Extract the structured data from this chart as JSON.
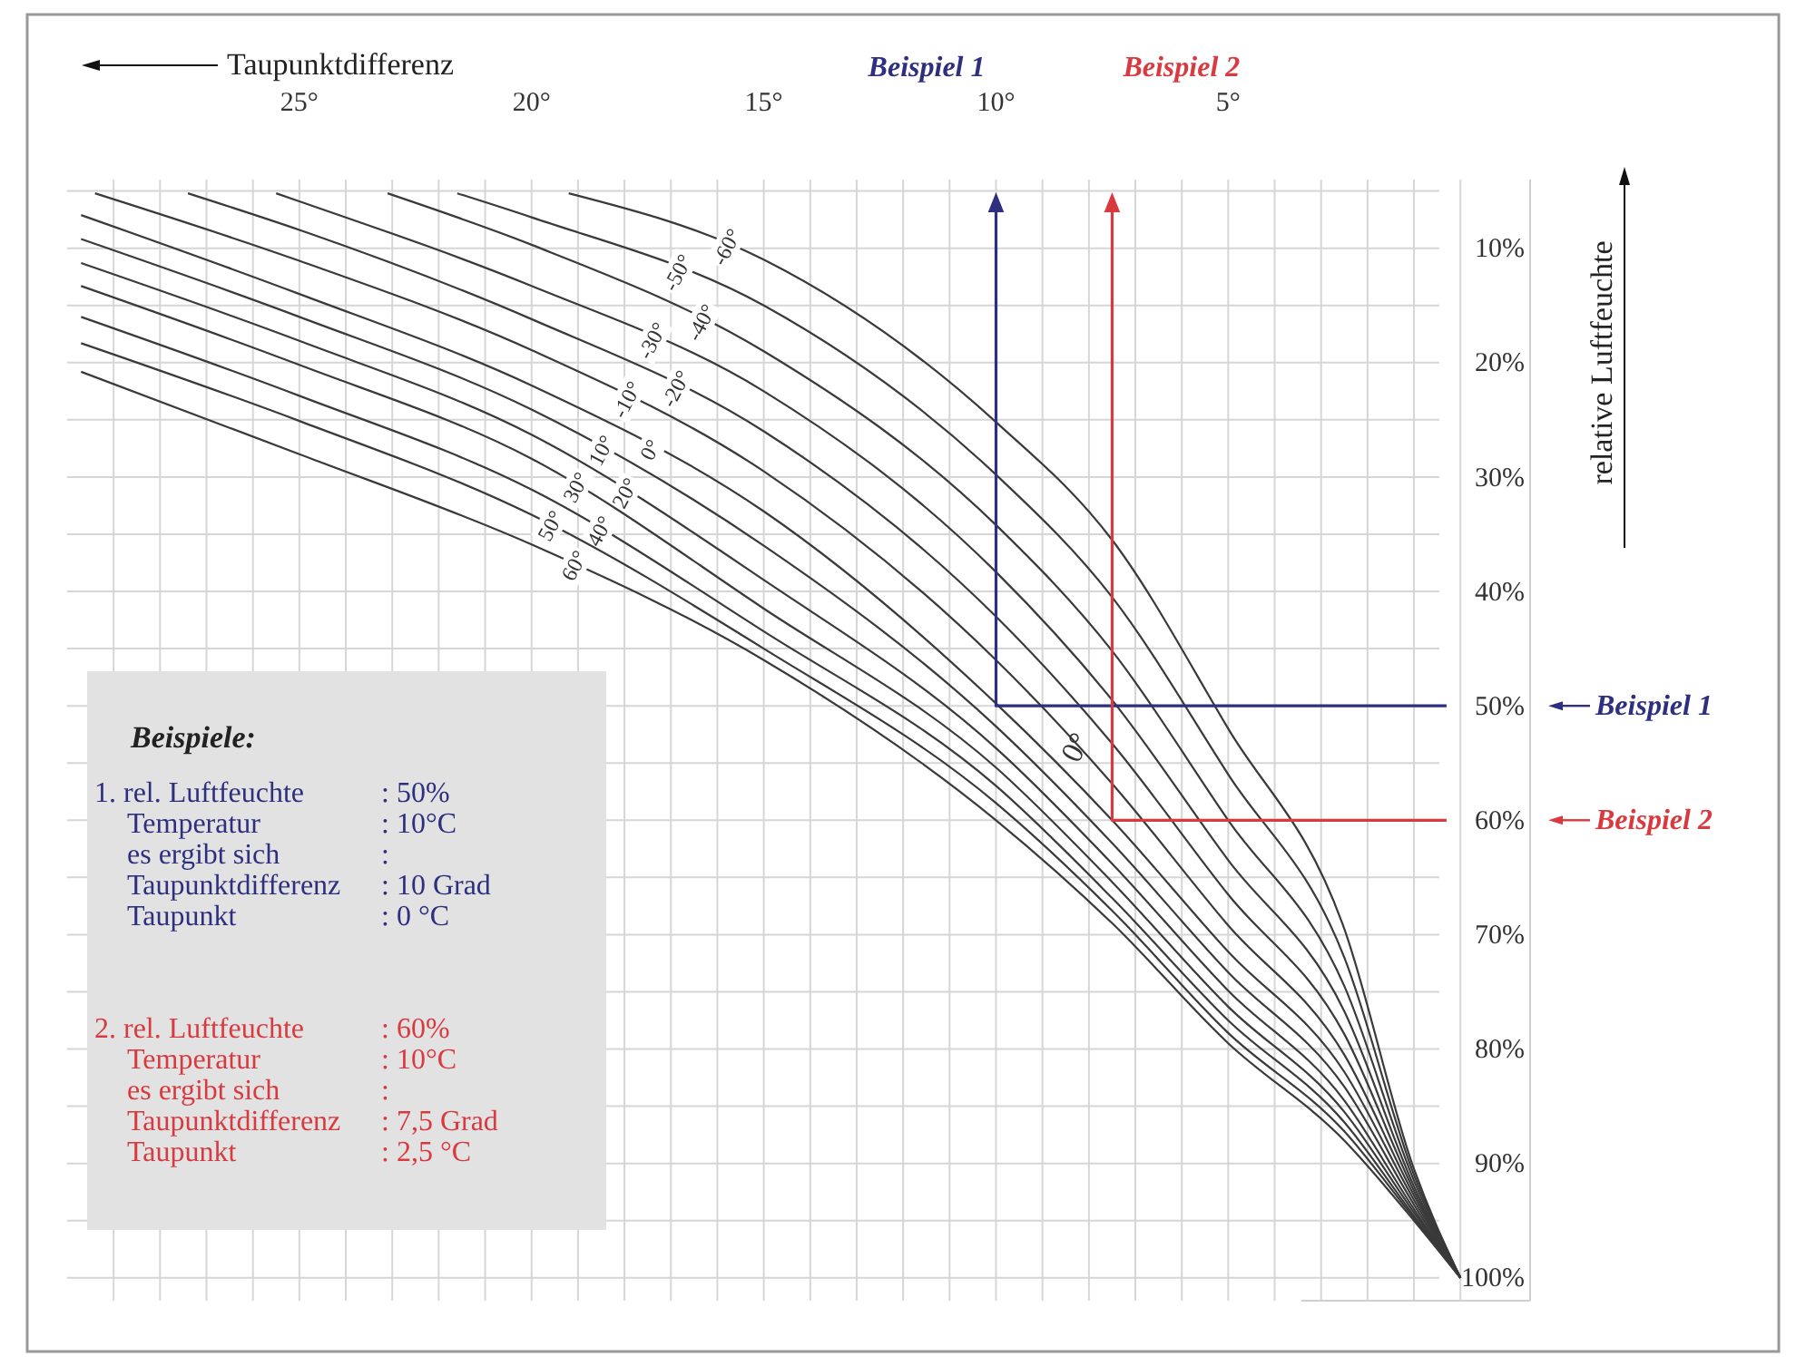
{
  "chart_data": {
    "type": "line",
    "xlabel": "Taupunktdifferenz",
    "ylabel": "relative Luftfeuchte",
    "xlim": [
      30,
      -1.5
    ],
    "ylim": [
      102,
      4
    ],
    "xticks": [
      {
        "value": 29,
        "label": null
      },
      {
        "value": 28,
        "label": null
      },
      {
        "value": 27,
        "label": null
      },
      {
        "value": 26,
        "label": null
      },
      {
        "value": 25,
        "label": "25°"
      },
      {
        "value": 24,
        "label": null
      },
      {
        "value": 23,
        "label": null
      },
      {
        "value": 22,
        "label": null
      },
      {
        "value": 21,
        "label": null
      },
      {
        "value": 20,
        "label": "20°"
      },
      {
        "value": 19,
        "label": null
      },
      {
        "value": 18,
        "label": null
      },
      {
        "value": 17,
        "label": null
      },
      {
        "value": 16,
        "label": null
      },
      {
        "value": 15,
        "label": "15°"
      },
      {
        "value": 14,
        "label": null
      },
      {
        "value": 13,
        "label": null
      },
      {
        "value": 12,
        "label": null
      },
      {
        "value": 11,
        "label": null
      },
      {
        "value": 10,
        "label": "10°"
      },
      {
        "value": 9,
        "label": null
      },
      {
        "value": 8,
        "label": null
      },
      {
        "value": 7,
        "label": null
      },
      {
        "value": 6,
        "label": null
      },
      {
        "value": 5,
        "label": "5°"
      },
      {
        "value": 4,
        "label": null
      },
      {
        "value": 3,
        "label": null
      },
      {
        "value": 2,
        "label": null
      },
      {
        "value": 1,
        "label": null
      },
      {
        "value": 0,
        "label": null
      }
    ],
    "yticks": [
      {
        "value": 5,
        "label": null
      },
      {
        "value": 10,
        "label": "10%"
      },
      {
        "value": 15,
        "label": null
      },
      {
        "value": 20,
        "label": "20%"
      },
      {
        "value": 25,
        "label": null
      },
      {
        "value": 30,
        "label": "30%"
      },
      {
        "value": 35,
        "label": null
      },
      {
        "value": 40,
        "label": "40%"
      },
      {
        "value": 45,
        "label": null
      },
      {
        "value": 50,
        "label": "50%"
      },
      {
        "value": 55,
        "label": null
      },
      {
        "value": 60,
        "label": "60%"
      },
      {
        "value": 65,
        "label": null
      },
      {
        "value": 70,
        "label": "70%"
      },
      {
        "value": 75,
        "label": null
      },
      {
        "value": 80,
        "label": "80%"
      },
      {
        "value": 85,
        "label": null
      },
      {
        "value": 90,
        "label": "90%"
      },
      {
        "value": 95,
        "label": null
      },
      {
        "value": 100,
        "label": "100%"
      }
    ],
    "grid": true,
    "series": [
      {
        "name": "-60°",
        "color": "#3a3a3a",
        "x": [
          19.2,
          15,
          10,
          7.5,
          5,
          2.5,
          1,
          0
        ],
        "values": [
          5.2,
          11,
          25.2,
          35.5,
          52,
          69.5,
          90.5,
          100
        ]
      },
      {
        "name": "-50°",
        "color": "#3a3a3a",
        "x": [
          21.6,
          20,
          15,
          10,
          7.5,
          5,
          2.5,
          1,
          0
        ],
        "values": [
          5.2,
          7.3,
          15,
          29.8,
          40.5,
          56,
          72,
          91,
          100
        ]
      },
      {
        "name": "-40°",
        "color": "#3a3a3a",
        "x": [
          23.1,
          20,
          15,
          10,
          7.5,
          5,
          2.5,
          1,
          0
        ],
        "values": [
          5.2,
          9.7,
          19,
          34.2,
          45.2,
          60,
          74.5,
          91.5,
          100
        ]
      },
      {
        "name": "-30°",
        "color": "#3a3a3a",
        "x": [
          25.5,
          25,
          20,
          15,
          10,
          7.5,
          5,
          2.5,
          1,
          0
        ],
        "values": [
          5.2,
          5.9,
          13.3,
          22.5,
          38.3,
          49.5,
          63.5,
          76.7,
          92,
          100
        ]
      },
      {
        "name": "-20°",
        "color": "#3a3a3a",
        "x": [
          27.4,
          25,
          20,
          15,
          10,
          7.5,
          5,
          2.5,
          1,
          0
        ],
        "values": [
          5.2,
          8.4,
          16.2,
          26,
          42.2,
          53.3,
          66.5,
          78.7,
          92.4,
          100
        ]
      },
      {
        "name": "-10°",
        "color": "#3a3a3a",
        "x": [
          29.4,
          25,
          20,
          15,
          10,
          7.5,
          5,
          2.5,
          1,
          0
        ],
        "values": [
          5.2,
          11.1,
          18.9,
          29.5,
          46,
          56.8,
          69.2,
          80.5,
          92.8,
          100
        ]
      },
      {
        "name": "0°",
        "color": "#3a3a3a",
        "x": [
          29.7,
          25,
          20,
          15,
          10,
          7.5,
          5,
          2.5,
          1,
          0
        ],
        "values": [
          7.1,
          14,
          22,
          33,
          49.8,
          60,
          71.5,
          82,
          93.2,
          100
        ]
      },
      {
        "name": "10°",
        "color": "#3a3a3a",
        "x": [
          29.7,
          25,
          20,
          15,
          10,
          7.5,
          5,
          2.5,
          1,
          0
        ],
        "values": [
          9.2,
          16,
          24.1,
          36,
          51.8,
          62,
          73.3,
          83.3,
          93.6,
          100
        ]
      },
      {
        "name": "20°",
        "color": "#3a3a3a",
        "x": [
          29.7,
          25,
          20,
          15,
          10,
          7.5,
          5,
          2.5,
          1,
          0
        ],
        "values": [
          11.3,
          18.1,
          26.3,
          39,
          53.7,
          63.8,
          74.9,
          84.5,
          94,
          100
        ]
      },
      {
        "name": "30°",
        "color": "#3a3a3a",
        "x": [
          29.7,
          25,
          20,
          15,
          10,
          7.5,
          5,
          2.5,
          1,
          0
        ],
        "values": [
          13.3,
          20.2,
          28.4,
          41.5,
          55.4,
          65.4,
          76.3,
          85.5,
          94.3,
          100
        ]
      },
      {
        "name": "40°",
        "color": "#3a3a3a",
        "x": [
          29.7,
          25,
          20,
          15,
          10,
          7.5,
          5,
          2.5,
          1,
          0
        ],
        "values": [
          16,
          22.9,
          31.1,
          43.5,
          57,
          66.8,
          77.5,
          86.4,
          94.6,
          100
        ]
      },
      {
        "name": "50°",
        "color": "#3a3a3a",
        "x": [
          29.7,
          25,
          20,
          15,
          10,
          7.5,
          5,
          2.5,
          1,
          0
        ],
        "values": [
          18.3,
          25.1,
          33.3,
          45,
          58.5,
          67.9,
          78.6,
          87.2,
          94.8,
          100
        ]
      },
      {
        "name": "60°",
        "color": "#3a3a3a",
        "x": [
          29.7,
          25,
          20,
          15,
          10,
          7.5,
          5,
          2.5,
          1,
          0
        ],
        "values": [
          20.8,
          28,
          35.9,
          46,
          60,
          69,
          79.5,
          88,
          95,
          100
        ]
      },
      {
        "name": "Beispiel 1",
        "color": "#2e2f7f",
        "x": [
          10,
          10,
          0.3
        ],
        "values": [
          6,
          50,
          50
        ]
      },
      {
        "name": "Beispiel 2",
        "color": "#d93a3f",
        "x": [
          7.5,
          7.5,
          0.3
        ],
        "values": [
          6,
          60,
          60
        ]
      }
    ],
    "annotations": [
      "Beispiele:",
      "1. rel. Luftfeuchte",
      ": 50%",
      "Temperatur",
      ": 10°C",
      "es ergibt sich",
      ":",
      "Taupunktdifferenz",
      ": 10 Grad",
      "Taupunkt",
      ": 0 °C",
      "2. rel. Luftfeuchte",
      ": 60%",
      "Temperatur",
      ": 10°C",
      "es ergibt sich",
      ":",
      "Taupunktdifferenz",
      ": 7,5 Grad",
      "Taupunkt",
      ": 2,5 °C",
      "Beispiel 1",
      "Beispiel 2",
      {
        "text": "0°",
        "x": 8.3,
        "y": 53.6
      }
    ]
  }
}
